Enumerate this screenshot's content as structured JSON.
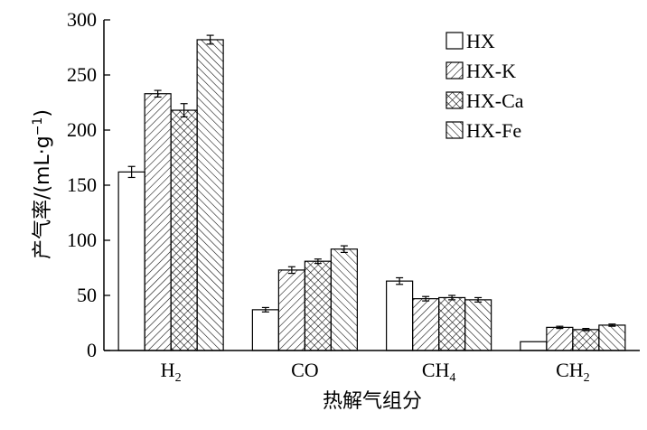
{
  "chart_data": {
    "type": "bar",
    "xlabel": "热解气组分",
    "ylabel": "产气率/(mL·g",
    "ylabel_sup": "−1",
    "ylabel_close": ")",
    "ylim": [
      0,
      300
    ],
    "yticks": [
      0,
      50,
      100,
      150,
      200,
      250,
      300
    ],
    "categories": [
      {
        "base": "H",
        "sub": "2"
      },
      {
        "base": "CO",
        "sub": ""
      },
      {
        "base": "CH",
        "sub": "4"
      },
      {
        "base": "CH",
        "sub": "2"
      }
    ],
    "series": [
      {
        "name": "HX",
        "pattern": "none",
        "values": [
          162,
          37,
          63,
          8
        ],
        "errors": [
          5,
          2,
          3,
          0
        ]
      },
      {
        "name": "HX-K",
        "pattern": "hatch-right",
        "values": [
          233,
          73,
          47,
          21
        ],
        "errors": [
          3,
          3,
          2,
          1
        ]
      },
      {
        "name": "HX-Ca",
        "pattern": "crosshatch",
        "values": [
          218,
          81,
          48,
          19
        ],
        "errors": [
          6,
          2,
          2,
          1
        ]
      },
      {
        "name": "HX-Fe",
        "pattern": "hatch-left",
        "values": [
          282,
          92,
          46,
          23
        ],
        "errors": [
          4,
          3,
          2,
          1
        ]
      }
    ],
    "legend_position": "top-right",
    "grid": false
  }
}
